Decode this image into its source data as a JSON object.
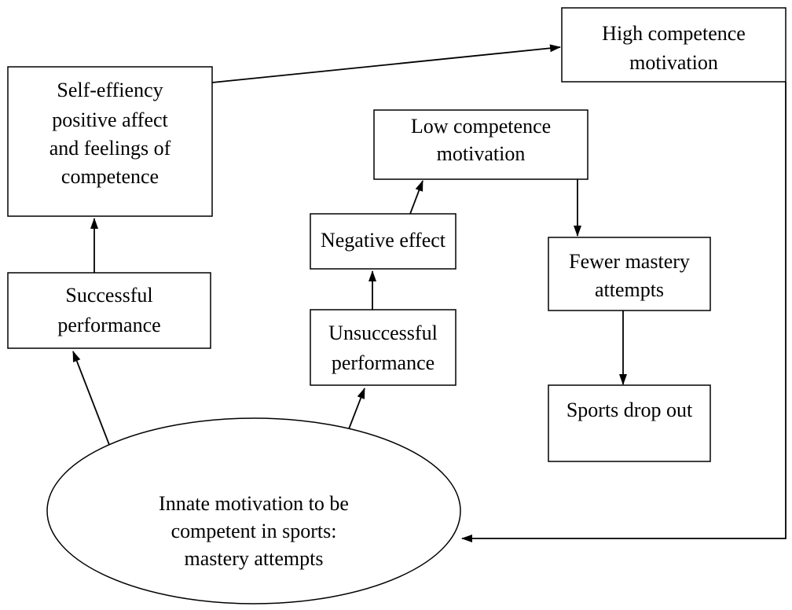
{
  "nodes": [
    {
      "lines": [
        "High competence",
        "motivation"
      ]
    },
    {
      "lines": [
        "Self-effiency",
        "positive affect",
        "and feelings of",
        "competence"
      ]
    },
    {
      "lines": [
        "Low competence",
        "motivation"
      ]
    },
    {
      "lines": [
        "Negative effect"
      ]
    },
    {
      "lines": [
        "Fewer mastery",
        "attempts"
      ]
    },
    {
      "lines": [
        "Successful",
        "performance"
      ]
    },
    {
      "lines": [
        "Unsuccessful",
        "performance"
      ]
    },
    {
      "lines": [
        "Sports drop out"
      ]
    },
    {
      "lines": [
        "Innate motivation to be",
        "competent in sports:",
        "mastery attempts"
      ]
    }
  ]
}
